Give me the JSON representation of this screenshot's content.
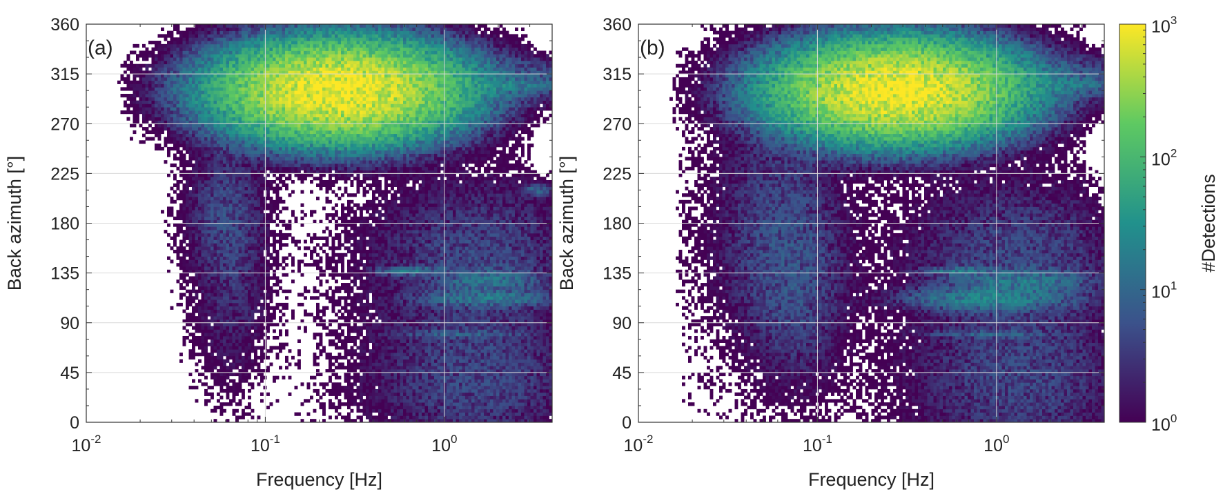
{
  "colors": {
    "colormap": [
      "#440154",
      "#3b528b",
      "#21918c",
      "#5ec962",
      "#fde725"
    ],
    "grid": "#d9d9d9",
    "axis": "#333333"
  },
  "chart_data": [
    {
      "type": "heatmap",
      "panel_label": "(a)",
      "xlabel": "Frequency [Hz]",
      "ylabel": "Back azimuth [°]",
      "x_scale": "log",
      "xlim": [
        0.01,
        4
      ],
      "ylim": [
        0,
        360
      ],
      "x_ticks": [
        0.01,
        0.1,
        1
      ],
      "x_tick_labels": [
        {
          "base": "10",
          "exp": "-2"
        },
        {
          "base": "10",
          "exp": "-1"
        },
        {
          "base": "10",
          "exp": "0"
        }
      ],
      "y_ticks": [
        0,
        45,
        90,
        135,
        180,
        225,
        270,
        315,
        360
      ],
      "y_tick_labels": [
        "0",
        "45",
        "90",
        "135",
        "180",
        "225",
        "270",
        "315",
        "360"
      ],
      "grid": true,
      "z_scale": "log",
      "zlim": [
        1,
        1000
      ],
      "background_level": 0.3,
      "features": [
        {
          "f_center": 0.26,
          "f_log_sigma": 0.3,
          "baz_center": 300,
          "baz_sigma": 20,
          "peak_detections": 1000
        },
        {
          "f_center": 1.3,
          "f_log_sigma": 0.45,
          "baz_center": 310,
          "baz_sigma": 12,
          "peak_detections": 8
        },
        {
          "f_center": 2.5,
          "f_log_sigma": 0.15,
          "baz_center": 305,
          "baz_sigma": 4,
          "peak_detections": 12
        },
        {
          "f_center": 1.5,
          "f_log_sigma": 0.35,
          "baz_center": 40,
          "baz_sigma": 40,
          "peak_detections": 4
        },
        {
          "f_center": 1.5,
          "f_log_sigma": 0.35,
          "baz_center": 150,
          "baz_sigma": 40,
          "peak_detections": 4
        },
        {
          "f_center": 1.8,
          "f_log_sigma": 0.2,
          "baz_center": 112,
          "baz_sigma": 4,
          "peak_detections": 14
        },
        {
          "f_center": 1.8,
          "f_log_sigma": 0.15,
          "baz_center": 128,
          "baz_sigma": 6,
          "peak_detections": 12
        },
        {
          "f_center": 0.65,
          "f_log_sigma": 0.1,
          "baz_center": 137,
          "baz_sigma": 2,
          "peak_detections": 18
        },
        {
          "f_center": 1.2,
          "f_log_sigma": 0.2,
          "baz_center": 80,
          "baz_sigma": 2,
          "peak_detections": 6
        },
        {
          "f_center": 0.06,
          "f_log_sigma": 0.12,
          "baz_center": 190,
          "baz_sigma": 35,
          "peak_detections": 4
        },
        {
          "f_center": 0.065,
          "f_log_sigma": 0.12,
          "baz_center": 120,
          "baz_sigma": 50,
          "peak_detections": 2
        },
        {
          "f_center": 3.3,
          "f_log_sigma": 0.05,
          "baz_center": 210,
          "baz_sigma": 3,
          "peak_detections": 8
        }
      ]
    },
    {
      "type": "heatmap",
      "panel_label": "(b)",
      "xlabel": "Frequency [Hz]",
      "ylabel": "Back azimuth [°]",
      "x_scale": "log",
      "xlim": [
        0.01,
        4
      ],
      "ylim": [
        0,
        360
      ],
      "x_ticks": [
        0.01,
        0.1,
        1
      ],
      "x_tick_labels": [
        {
          "base": "10",
          "exp": "-2"
        },
        {
          "base": "10",
          "exp": "-1"
        },
        {
          "base": "10",
          "exp": "0"
        }
      ],
      "y_ticks": [
        0,
        45,
        90,
        135,
        180,
        225,
        270,
        315,
        360
      ],
      "y_tick_labels": [
        "0",
        "45",
        "90",
        "135",
        "180",
        "225",
        "270",
        "315",
        "360"
      ],
      "grid": true,
      "z_scale": "log",
      "zlim": [
        1,
        1000
      ],
      "background_level": 0.35,
      "features": [
        {
          "f_center": 0.28,
          "f_log_sigma": 0.3,
          "baz_center": 300,
          "baz_sigma": 20,
          "peak_detections": 1000
        },
        {
          "f_center": 1.3,
          "f_log_sigma": 0.45,
          "baz_center": 310,
          "baz_sigma": 12,
          "peak_detections": 8
        },
        {
          "f_center": 2.5,
          "f_log_sigma": 0.15,
          "baz_center": 305,
          "baz_sigma": 4,
          "peak_detections": 12
        },
        {
          "f_center": 1.3,
          "f_log_sigma": 0.35,
          "baz_center": 40,
          "baz_sigma": 40,
          "peak_detections": 4
        },
        {
          "f_center": 1.3,
          "f_log_sigma": 0.35,
          "baz_center": 150,
          "baz_sigma": 40,
          "peak_detections": 4
        },
        {
          "f_center": 0.9,
          "f_log_sigma": 0.25,
          "baz_center": 112,
          "baz_sigma": 6,
          "peak_detections": 20
        },
        {
          "f_center": 1.4,
          "f_log_sigma": 0.2,
          "baz_center": 128,
          "baz_sigma": 6,
          "peak_detections": 14
        },
        {
          "f_center": 0.6,
          "f_log_sigma": 0.1,
          "baz_center": 137,
          "baz_sigma": 2,
          "peak_detections": 18
        },
        {
          "f_center": 0.9,
          "f_log_sigma": 0.2,
          "baz_center": 80,
          "baz_sigma": 2,
          "peak_detections": 6
        },
        {
          "f_center": 0.06,
          "f_log_sigma": 0.2,
          "baz_center": 170,
          "baz_sigma": 60,
          "peak_detections": 4
        },
        {
          "f_center": 0.08,
          "f_log_sigma": 0.15,
          "baz_center": 120,
          "baz_sigma": 50,
          "peak_detections": 3
        }
      ]
    }
  ],
  "colorbar": {
    "label": "#Detections",
    "scale": "log",
    "ticks": [
      1,
      10,
      100,
      1000
    ],
    "tick_labels": [
      {
        "base": "10",
        "exp": "0"
      },
      {
        "base": "10",
        "exp": "1"
      },
      {
        "base": "10",
        "exp": "2"
      },
      {
        "base": "10",
        "exp": "3"
      }
    ]
  }
}
